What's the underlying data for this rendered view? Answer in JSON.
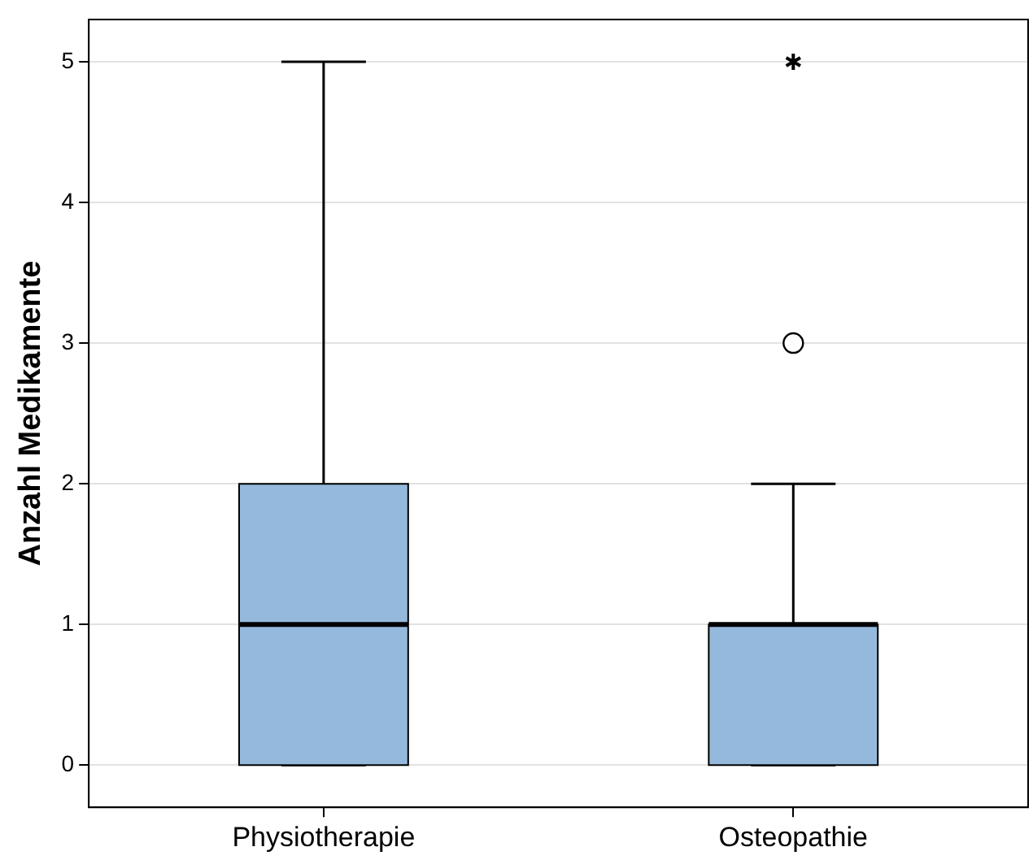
{
  "chart_data": {
    "type": "box",
    "ylabel": "Anzahl Medikamente",
    "categories": [
      "Physiotherapie",
      "Osteopathie"
    ],
    "color": "#94b9dc",
    "ylim": [
      -0.3,
      5.3
    ],
    "yticks": [
      0,
      1,
      2,
      3,
      4,
      5
    ],
    "grid": "y",
    "boxes": [
      {
        "low": 0,
        "q1": 0,
        "median": 1,
        "q3": 2,
        "high": 5
      },
      {
        "low": 0,
        "q1": 0,
        "median": 1,
        "q3": 1,
        "high": 2,
        "outliers": [
          3,
          5
        ]
      }
    ]
  }
}
